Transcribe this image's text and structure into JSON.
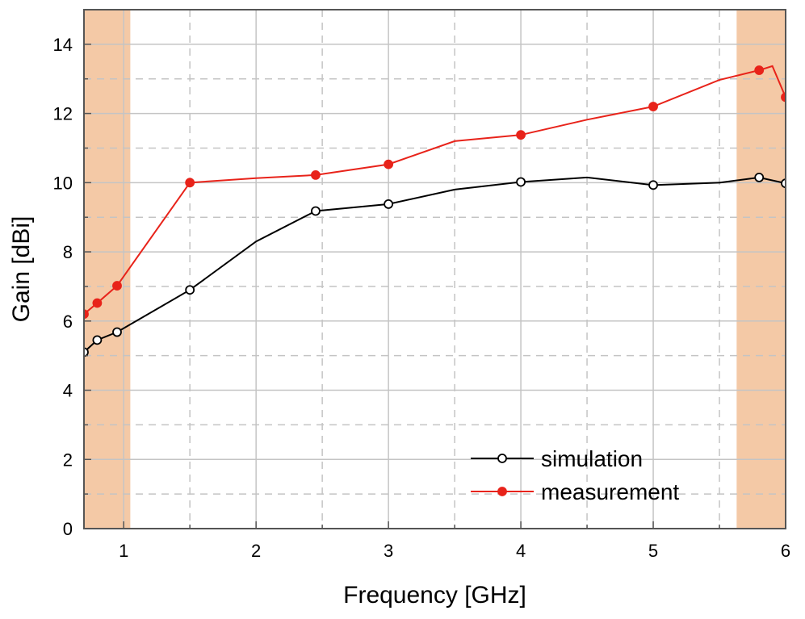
{
  "chart_data": {
    "type": "line",
    "xlabel": "Frequency [GHz]",
    "ylabel": "Gain [dBi]",
    "xlim": [
      0.7,
      6.0
    ],
    "ylim": [
      0,
      15
    ],
    "x_ticks": [
      1,
      2,
      3,
      4,
      5,
      6
    ],
    "y_ticks": [
      0,
      2,
      4,
      6,
      8,
      10,
      12,
      14
    ],
    "grid": true,
    "legend_position": "bottom-right",
    "shaded_bands": [
      {
        "x_range": [
          0.7,
          1.05
        ],
        "color": "#f4c9a6"
      },
      {
        "x_range": [
          5.63,
          6.0
        ],
        "color": "#f4c9a6"
      }
    ],
    "series": [
      {
        "name": "simulation",
        "color": "#000000",
        "marker": "open-circle",
        "x": [
          0.7,
          0.8,
          0.95,
          1.5,
          2.0,
          2.45,
          3.0,
          3.5,
          4.0,
          4.5,
          5.0,
          5.5,
          5.8,
          6.0
        ],
        "y": [
          5.1,
          5.45,
          5.68,
          6.9,
          8.3,
          9.18,
          9.38,
          9.8,
          10.02,
          10.15,
          9.93,
          10.0,
          10.15,
          9.98
        ],
        "marker_x": [
          0.7,
          0.8,
          0.95,
          1.5,
          2.45,
          3.0,
          4.0,
          5.0,
          5.8,
          6.0
        ],
        "marker_y": [
          5.1,
          5.45,
          5.68,
          6.9,
          9.18,
          9.38,
          10.02,
          9.93,
          10.15,
          9.98
        ]
      },
      {
        "name": "measurement",
        "color": "#e8231a",
        "marker": "filled-circle",
        "x": [
          0.7,
          0.8,
          0.95,
          1.5,
          2.0,
          2.45,
          3.0,
          3.5,
          4.0,
          4.5,
          5.0,
          5.5,
          5.8,
          5.9,
          6.0
        ],
        "y": [
          6.2,
          6.52,
          7.02,
          10.0,
          10.13,
          10.22,
          10.53,
          11.2,
          11.38,
          11.82,
          12.2,
          12.97,
          13.25,
          13.37,
          12.47
        ],
        "marker_x": [
          0.7,
          0.8,
          0.95,
          1.5,
          2.45,
          3.0,
          4.0,
          5.0,
          5.8,
          6.0
        ],
        "marker_y": [
          6.2,
          6.52,
          7.02,
          10.0,
          10.22,
          10.53,
          11.38,
          12.2,
          13.25,
          12.47
        ]
      }
    ]
  }
}
